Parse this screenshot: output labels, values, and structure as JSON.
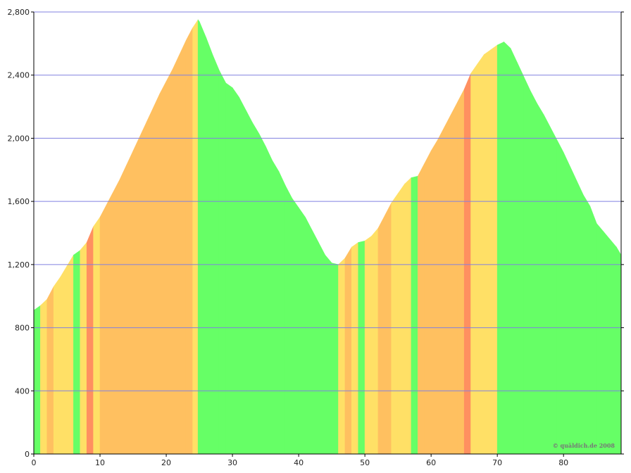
{
  "chart_data": {
    "type": "elevation-profile",
    "annotation": "© quäldich.de 2008",
    "x": [
      0,
      1,
      2,
      3,
      4,
      5,
      6,
      7,
      8,
      9,
      10,
      11,
      12,
      13,
      14,
      15,
      16,
      17,
      18,
      19,
      20,
      21,
      22,
      23,
      24,
      24.8,
      25,
      26,
      27,
      28,
      29,
      30,
      31,
      32,
      33,
      34,
      35,
      36,
      37,
      38,
      39,
      40,
      41,
      42,
      43,
      44,
      45,
      46,
      47,
      48,
      49,
      50,
      51,
      52,
      53,
      54,
      55,
      56,
      57,
      58,
      59,
      60,
      61,
      62,
      63,
      64,
      65,
      66,
      67,
      68,
      69,
      70,
      71,
      72,
      73,
      74,
      75,
      76,
      77,
      78,
      79,
      80,
      81,
      82,
      83,
      84,
      85,
      86,
      87,
      88,
      88.7
    ],
    "values": [
      910,
      940,
      980,
      1060,
      1120,
      1190,
      1260,
      1290,
      1340,
      1440,
      1500,
      1580,
      1660,
      1740,
      1830,
      1920,
      2010,
      2100,
      2190,
      2280,
      2360,
      2440,
      2530,
      2620,
      2700,
      2750,
      2740,
      2640,
      2530,
      2430,
      2350,
      2320,
      2260,
      2180,
      2100,
      2030,
      1950,
      1860,
      1790,
      1700,
      1620,
      1560,
      1500,
      1420,
      1340,
      1260,
      1210,
      1200,
      1240,
      1310,
      1340,
      1350,
      1380,
      1430,
      1510,
      1590,
      1650,
      1710,
      1750,
      1760,
      1840,
      1920,
      1990,
      2070,
      2150,
      2230,
      2310,
      2410,
      2470,
      2530,
      2560,
      2590,
      2610,
      2570,
      2480,
      2390,
      2300,
      2220,
      2150,
      2070,
      1990,
      1910,
      1820,
      1730,
      1640,
      1570,
      1460,
      1410,
      1360,
      1310,
      1260
    ],
    "colors": [
      "#66ff66",
      "#ffe066",
      "#ffc060",
      "#ffe066",
      "#ffe066",
      "#ffe066",
      "#66ff66",
      "#ffe066",
      "#ff9060",
      "#ffe066",
      "#ffc060",
      "#ffc060",
      "#ffc060",
      "#ffc060",
      "#ffc060",
      "#ffc060",
      "#ffc060",
      "#ffc060",
      "#ffc060",
      "#ffc060",
      "#ffc060",
      "#ffc060",
      "#ffc060",
      "#ffc060",
      "#ffe066",
      "#66ff66",
      "#66ff66",
      "#66ff66",
      "#66ff66",
      "#66ff66",
      "#66ff66",
      "#66ff66",
      "#66ff66",
      "#66ff66",
      "#66ff66",
      "#66ff66",
      "#66ff66",
      "#66ff66",
      "#66ff66",
      "#66ff66",
      "#66ff66",
      "#66ff66",
      "#66ff66",
      "#66ff66",
      "#66ff66",
      "#66ff66",
      "#66ff66",
      "#ffe066",
      "#ffc060",
      "#ffe066",
      "#66ff66",
      "#ffe066",
      "#ffe066",
      "#ffc060",
      "#ffc060",
      "#ffe066",
      "#ffe066",
      "#ffe066",
      "#66ff66",
      "#ffc060",
      "#ffc060",
      "#ffc060",
      "#ffc060",
      "#ffc060",
      "#ffc060",
      "#ffc060",
      "#ff9060",
      "#ffe066",
      "#ffe066",
      "#ffe066",
      "#ffe066",
      "#66ff66",
      "#66ff66",
      "#66ff66",
      "#66ff66",
      "#66ff66",
      "#66ff66",
      "#66ff66",
      "#66ff66",
      "#66ff66",
      "#66ff66",
      "#66ff66",
      "#66ff66",
      "#66ff66",
      "#66ff66",
      "#66ff66",
      "#66ff66",
      "#66ff66",
      "#66ff66",
      "#66ff66",
      "#66ff66"
    ],
    "xlim": [
      0,
      88.7
    ],
    "ylim": [
      0,
      2800
    ],
    "xticks": [
      0,
      10,
      20,
      30,
      40,
      50,
      60,
      70,
      80
    ],
    "yticks": [
      0,
      400,
      800,
      {
        "value": 1200,
        "label": "1,200"
      },
      {
        "value": 1600,
        "label": "1,600"
      },
      {
        "value": 2000,
        "label": "2,000"
      },
      {
        "value": 2400,
        "label": "2,400"
      },
      {
        "value": 2800,
        "label": "2,800"
      }
    ],
    "grid": true,
    "grid_color": "#8080e0"
  }
}
